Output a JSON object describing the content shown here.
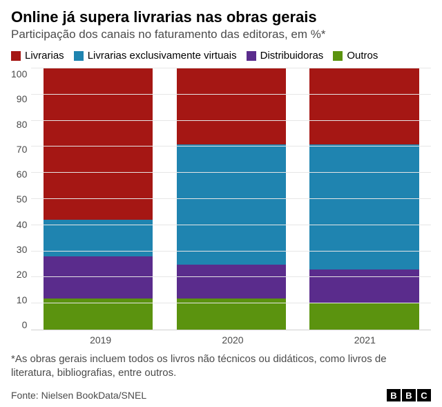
{
  "title": {
    "text": "Online já supera livrarias nas obras gerais",
    "fontsize": 22,
    "color": "#000000",
    "weight": 700
  },
  "subtitle": {
    "text": "Participação dos canais no faturamento das editoras, em %*",
    "fontsize": 17,
    "color": "#4a4a4a"
  },
  "legend": {
    "fontsize": 15,
    "items": [
      {
        "label": "Livrarias",
        "color": "#a51714"
      },
      {
        "label": "Livrarias exclusivamente virtuais",
        "color": "#1f84b0"
      },
      {
        "label": "Distribuidoras",
        "color": "#5a2c8c"
      },
      {
        "label": "Outros",
        "color": "#5b930f"
      }
    ]
  },
  "chart": {
    "type": "stacked-bar-100",
    "ylim": [
      0,
      100
    ],
    "ytick_step": 10,
    "yticks": [
      "100",
      "90",
      "80",
      "70",
      "60",
      "50",
      "40",
      "30",
      "20",
      "10",
      "0"
    ],
    "grid_color": "#e6e6e6",
    "axis_color": "#cfcfcf",
    "background_color": "#ffffff",
    "tick_fontsize": 14,
    "tick_color": "#4a4a4a",
    "bar_width_pct": 82,
    "categories": [
      "2019",
      "2020",
      "2021"
    ],
    "series_order": [
      "outros",
      "distribuidoras",
      "virtuais",
      "livrarias"
    ],
    "series_colors": {
      "livrarias": "#a51714",
      "virtuais": "#1f84b0",
      "distribuidoras": "#5a2c8c",
      "outros": "#5b930f"
    },
    "data": {
      "2019": {
        "outros": 12,
        "distribuidoras": 16,
        "virtuais": 14,
        "livrarias": 58
      },
      "2020": {
        "outros": 12,
        "distribuidoras": 13,
        "virtuais": 46,
        "livrarias": 29
      },
      "2021": {
        "outros": 10,
        "distribuidoras": 13,
        "virtuais": 48,
        "livrarias": 29
      }
    }
  },
  "footnote": {
    "text": "*As obras gerais incluem todos os livros não técnicos ou didáticos, como livros de literatura, bibliografias, entre outros.",
    "fontsize": 15,
    "color": "#4a4a4a"
  },
  "source": {
    "text": "Fonte: Nielsen BookData/SNEL",
    "fontsize": 14,
    "color": "#4a4a4a"
  },
  "logo": {
    "letters": [
      "B",
      "B",
      "C"
    ],
    "box_bg": "#000000",
    "box_fg": "#ffffff"
  }
}
